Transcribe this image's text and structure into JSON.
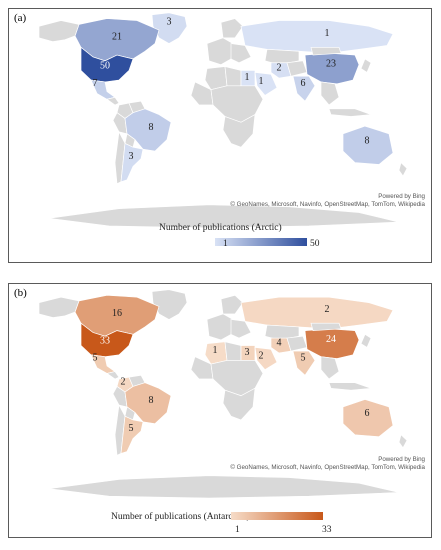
{
  "panels": [
    {
      "id": "a",
      "label": "(a)",
      "legend_title": "Number of publications (Arctic)",
      "legend_min": "1",
      "legend_max": "50",
      "color_low": "#d9e2f5",
      "color_high": "#2f4f9e",
      "credit_line1": "Powered by Bing",
      "credit_line2": "© GeoNames, Microsoft, Navinfo, OpenStreetMap, TomTom, Wikipedia",
      "regions": [
        {
          "name": "United States",
          "value": 50
        },
        {
          "name": "Canada",
          "value": 21
        },
        {
          "name": "China",
          "value": 23
        },
        {
          "name": "Brazil",
          "value": 8
        },
        {
          "name": "Australia",
          "value": 8
        },
        {
          "name": "Mexico",
          "value": 7
        },
        {
          "name": "India",
          "value": 6
        },
        {
          "name": "Greenland",
          "value": 3
        },
        {
          "name": "Argentina",
          "value": 3
        },
        {
          "name": "Russia",
          "value": 1
        },
        {
          "name": "Iran",
          "value": 2
        },
        {
          "name": "Egypt",
          "value": 1
        },
        {
          "name": "Saudi Arabia",
          "value": 1
        }
      ]
    },
    {
      "id": "b",
      "label": "(b)",
      "legend_title": "Number of publications (Antarctica)",
      "legend_min": "1",
      "legend_max": "33",
      "color_low": "#f6dcc8",
      "color_high": "#c8581a",
      "credit_line1": "Powered by Bing",
      "credit_line2": "© GeoNames, Microsoft, Navinfo, OpenStreetMap, TomTom, Wikipedia",
      "regions": [
        {
          "name": "United States",
          "value": 33
        },
        {
          "name": "China",
          "value": 24
        },
        {
          "name": "Canada",
          "value": 16
        },
        {
          "name": "Brazil",
          "value": 8
        },
        {
          "name": "Australia",
          "value": 6
        },
        {
          "name": "Mexico",
          "value": 5
        },
        {
          "name": "India",
          "value": 5
        },
        {
          "name": "Argentina",
          "value": 5
        },
        {
          "name": "Iran",
          "value": 4
        },
        {
          "name": "Egypt",
          "value": 3
        },
        {
          "name": "Saudi Arabia",
          "value": 2
        },
        {
          "name": "Russia",
          "value": 2
        },
        {
          "name": "Colombia",
          "value": 2
        },
        {
          "name": "Algeria",
          "value": 1
        }
      ]
    }
  ]
}
